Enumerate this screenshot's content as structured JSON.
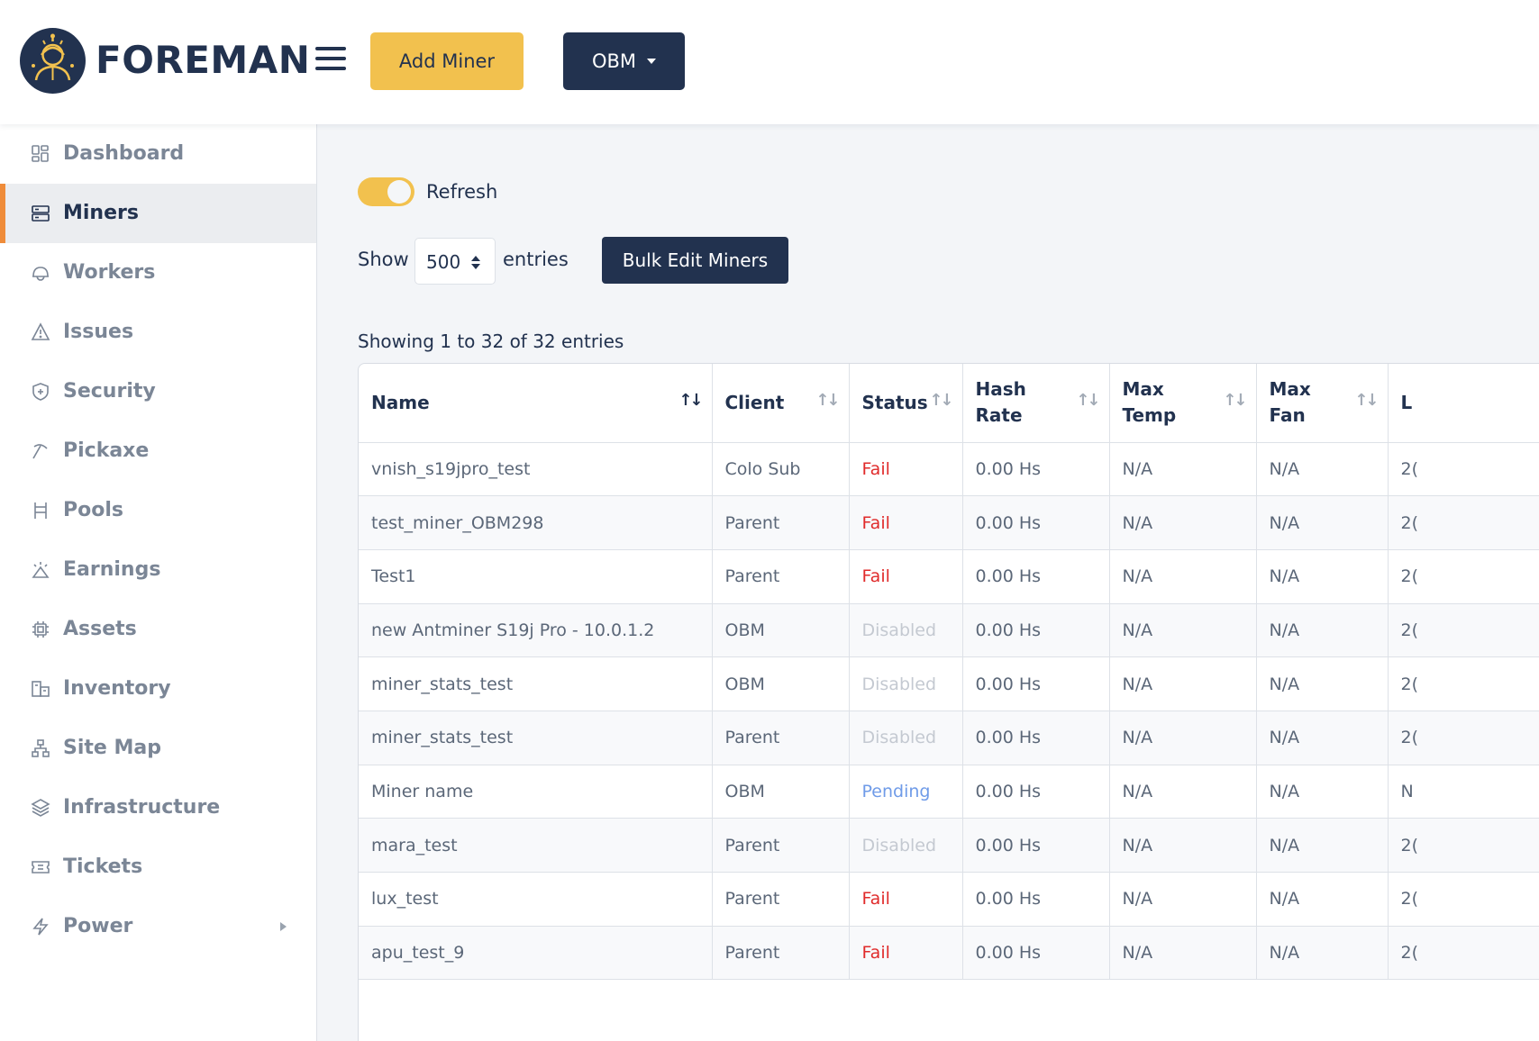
{
  "brand": {
    "name": "FOREMAN",
    "accent": "#f2c14e",
    "navy": "#22324f"
  },
  "header": {
    "add_miner_label": "Add Miner",
    "site_selector_label": "OBM"
  },
  "sidebar": {
    "items": [
      {
        "label": "Dashboard",
        "icon": "dashboard-icon"
      },
      {
        "label": "Miners",
        "icon": "server-icon",
        "active": true
      },
      {
        "label": "Workers",
        "icon": "hardhat-icon"
      },
      {
        "label": "Issues",
        "icon": "warning-icon"
      },
      {
        "label": "Security",
        "icon": "shield-icon"
      },
      {
        "label": "Pickaxe",
        "icon": "pickaxe-icon"
      },
      {
        "label": "Pools",
        "icon": "pools-icon"
      },
      {
        "label": "Earnings",
        "icon": "earnings-icon"
      },
      {
        "label": "Assets",
        "icon": "chip-icon"
      },
      {
        "label": "Inventory",
        "icon": "boxes-icon"
      },
      {
        "label": "Site Map",
        "icon": "sitemap-icon"
      },
      {
        "label": "Infrastructure",
        "icon": "layers-icon"
      },
      {
        "label": "Tickets",
        "icon": "ticket-icon"
      },
      {
        "label": "Power",
        "icon": "bolt-icon",
        "has_submenu": true
      }
    ]
  },
  "controls": {
    "refresh_label": "Refresh",
    "refresh_on": true,
    "show_label": "Show",
    "entries_value": "500",
    "entries_label": "entries",
    "bulk_edit_label": "Bulk Edit Miners",
    "showing_text": "Showing 1 to 32 of 32 entries"
  },
  "table": {
    "columns": [
      "Name",
      "Client",
      "Status",
      "Hash Rate",
      "Max Temp",
      "Max Fan",
      "L"
    ],
    "status_colors": {
      "Fail": "#e02b2b",
      "Disabled": "#c4c9d1",
      "Pending": "#6f9be8"
    },
    "rows": [
      [
        "vnish_s19jpro_test",
        "Colo Sub",
        "Fail",
        "0.00 Hs",
        "N/A",
        "N/A",
        "2("
      ],
      [
        "test_miner_OBM298",
        "Parent",
        "Fail",
        "0.00 Hs",
        "N/A",
        "N/A",
        "2("
      ],
      [
        "Test1",
        "Parent",
        "Fail",
        "0.00 Hs",
        "N/A",
        "N/A",
        "2("
      ],
      [
        "new Antminer S19j Pro - 10.0.1.2",
        "OBM",
        "Disabled",
        "0.00 Hs",
        "N/A",
        "N/A",
        "2("
      ],
      [
        "miner_stats_test",
        "OBM",
        "Disabled",
        "0.00 Hs",
        "N/A",
        "N/A",
        "2("
      ],
      [
        "miner_stats_test",
        "Parent",
        "Disabled",
        "0.00 Hs",
        "N/A",
        "N/A",
        "2("
      ],
      [
        "Miner name",
        "OBM",
        "Pending",
        "0.00 Hs",
        "N/A",
        "N/A",
        "N"
      ],
      [
        "mara_test",
        "Parent",
        "Disabled",
        "0.00 Hs",
        "N/A",
        "N/A",
        "2("
      ],
      [
        "lux_test",
        "Parent",
        "Fail",
        "0.00 Hs",
        "N/A",
        "N/A",
        "2("
      ],
      [
        "apu_test_9",
        "Parent",
        "Fail",
        "0.00 Hs",
        "N/A",
        "N/A",
        "2("
      ]
    ]
  }
}
